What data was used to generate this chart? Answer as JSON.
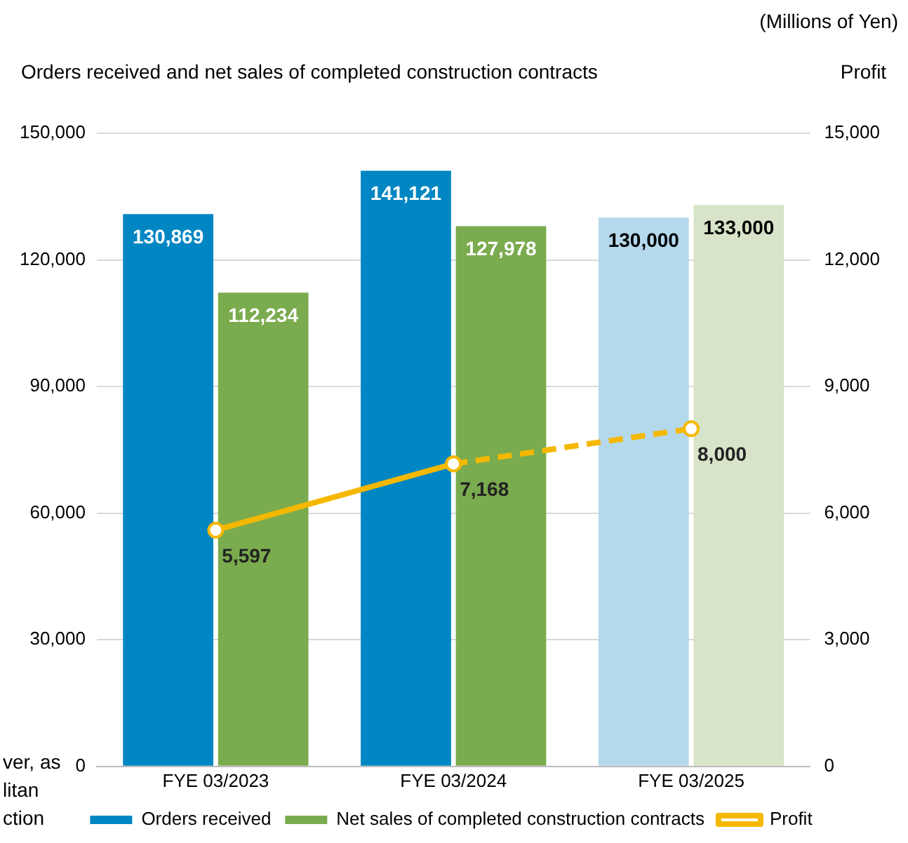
{
  "chart_data": {
    "type": "bar",
    "title": "Orders received and net sales of completed construction contracts",
    "y2label": "Profit",
    "annotations": [
      "(Millions of Yen)",
      "ver, as",
      "litan",
      "ction"
    ],
    "categories": [
      "FYE 03/2023",
      "FYE 03/2024",
      "FYE 03/2025"
    ],
    "series": [
      {
        "name": "Orders received",
        "colors": [
          "#0086c3",
          "#0086c3",
          "#b5d9ec"
        ],
        "values": [
          130869,
          141121,
          130000
        ],
        "value_labels": [
          "130,869",
          "141,121",
          "130,000"
        ]
      },
      {
        "name": "Net sales of completed construction contracts",
        "colors": [
          "#7aab4e",
          "#7aab4e",
          "#d7e4c9"
        ],
        "values": [
          112234,
          127978,
          133000
        ],
        "value_labels": [
          "112,234",
          "127,978",
          "133,000"
        ]
      },
      {
        "name": "Profit",
        "type": "line",
        "axis": "y2",
        "color": "#f5b800",
        "line_style": "solid",
        "marker": "circle",
        "values": [
          5597,
          7168,
          null
        ],
        "value_labels": [
          "5,597",
          "7,168",
          null
        ]
      },
      {
        "type": "line",
        "axis": "y2",
        "color": "#f5b800",
        "line_style": "dashed",
        "marker": "circle",
        "values": [
          null,
          7168,
          8000
        ],
        "value_labels": [
          null,
          null,
          "8,000"
        ]
      }
    ],
    "ylim": [
      0,
      150000
    ],
    "yticks": [
      0,
      {
        "value": 30000,
        "label": "30,000"
      },
      {
        "value": 60000,
        "label": "60,000"
      },
      {
        "value": 90000,
        "label": "90,000"
      },
      {
        "value": 120000,
        "label": "120,000"
      },
      {
        "value": 150000,
        "label": "150,000"
      }
    ],
    "y2lim": [
      0,
      15000
    ],
    "y2ticks": [
      0,
      {
        "value": 3000,
        "label": "3,000"
      },
      {
        "value": 6000,
        "label": "6,000"
      },
      {
        "value": 9000,
        "label": "9,000"
      },
      {
        "value": 12000,
        "label": "12,000"
      },
      {
        "value": 15000,
        "label": "15,000"
      }
    ],
    "grid": "y",
    "legend": "bottom"
  }
}
